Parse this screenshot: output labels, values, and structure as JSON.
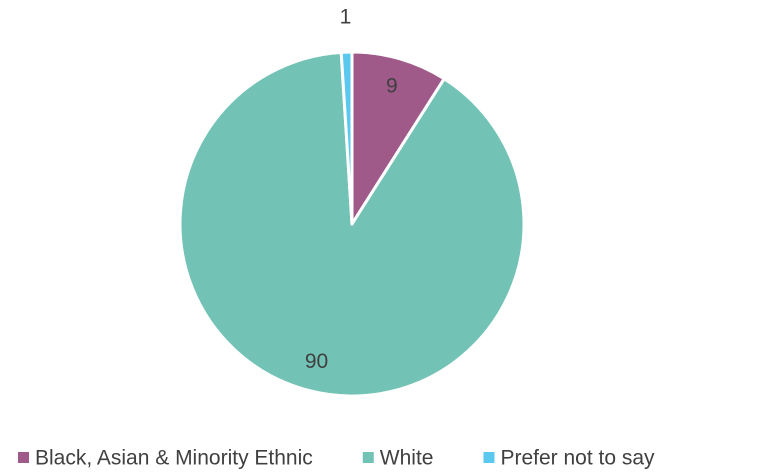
{
  "chart_data": {
    "type": "pie",
    "categories": [
      "Black, Asian & Minority Ethnic",
      "White",
      "Prefer not to say"
    ],
    "values": [
      9,
      90,
      1
    ],
    "colors": [
      "#a05a8a",
      "#72c3b5",
      "#5bc8f0"
    ],
    "legend": "bottom"
  }
}
